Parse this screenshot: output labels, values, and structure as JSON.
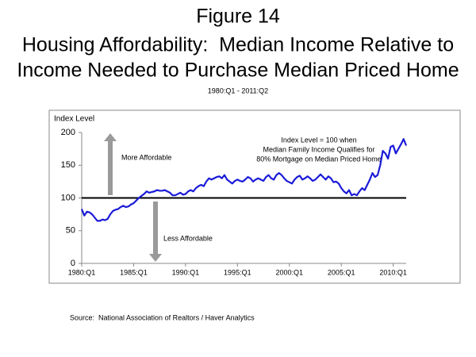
{
  "chart_data": {
    "type": "line",
    "title": [
      "Figure 14",
      "Housing Affordability:  Median Income Relative to",
      "Income Needed to Purchase Median Priced Home"
    ],
    "subtitle": "1980:Q1 - 2011:Q2",
    "ylabel": "Index Level",
    "annotations": [
      "Index Level = 100 when",
      "Median Family Income Qualifies for",
      "80% Mortgage on Median Priced Home"
    ],
    "arrow_labels": [
      "More Affordable",
      "Less Affordable"
    ],
    "source": "Source:  National Association of Realtors / Haver Analytics",
    "reference_line": 100,
    "categories": [
      "1980:Q1",
      null,
      null,
      null,
      null,
      null,
      null,
      null,
      null,
      null,
      null,
      null,
      null,
      null,
      null,
      null,
      null,
      null,
      null,
      null,
      "1985:Q1",
      null,
      null,
      null,
      null,
      null,
      null,
      null,
      null,
      null,
      null,
      null,
      null,
      null,
      null,
      null,
      null,
      null,
      null,
      null,
      "1990:Q1",
      null,
      null,
      null,
      null,
      null,
      null,
      null,
      null,
      null,
      null,
      null,
      null,
      null,
      null,
      null,
      null,
      null,
      null,
      null,
      "1995:Q1",
      null,
      null,
      null,
      null,
      null,
      null,
      null,
      null,
      null,
      null,
      null,
      null,
      null,
      null,
      null,
      null,
      null,
      null,
      null,
      "2000:Q1",
      null,
      null,
      null,
      null,
      null,
      null,
      null,
      null,
      null,
      null,
      null,
      null,
      null,
      null,
      null,
      null,
      null,
      null,
      null,
      "2005:Q1",
      null,
      null,
      null,
      null,
      null,
      null,
      null,
      null,
      null,
      null,
      null,
      null,
      null,
      null,
      null,
      null,
      null,
      null,
      null,
      "2010:Q1",
      null,
      null,
      null,
      null,
      null
    ],
    "series": [
      {
        "color": "#1a1ad8",
        "values": [
          83,
          73,
          79,
          78,
          75,
          70,
          65,
          65,
          67,
          66,
          68,
          75,
          80,
          82,
          83,
          86,
          88,
          86,
          87,
          90,
          92,
          96,
          100,
          103,
          106,
          110,
          108,
          109,
          110,
          112,
          111,
          111,
          112,
          110,
          108,
          104,
          104,
          106,
          108,
          105,
          106,
          110,
          112,
          110,
          115,
          118,
          120,
          118,
          125,
          130,
          128,
          130,
          132,
          133,
          130,
          135,
          128,
          125,
          122,
          126,
          128,
          126,
          125,
          128,
          132,
          130,
          125,
          128,
          130,
          128,
          126,
          132,
          135,
          130,
          128,
          135,
          138,
          135,
          130,
          126,
          124,
          122,
          128,
          132,
          134,
          128,
          130,
          133,
          130,
          126,
          128,
          132,
          136,
          132,
          128,
          133,
          130,
          124,
          125,
          122,
          115,
          110,
          107,
          112,
          104,
          106,
          104,
          110,
          115,
          112,
          120,
          128,
          138,
          132,
          135,
          150,
          172,
          168,
          160,
          178,
          180,
          168,
          175,
          182,
          190,
          180
        ]
      }
    ],
    "ylim": [
      0,
      200
    ],
    "yticks": [
      0,
      50,
      100,
      150,
      200
    ]
  }
}
